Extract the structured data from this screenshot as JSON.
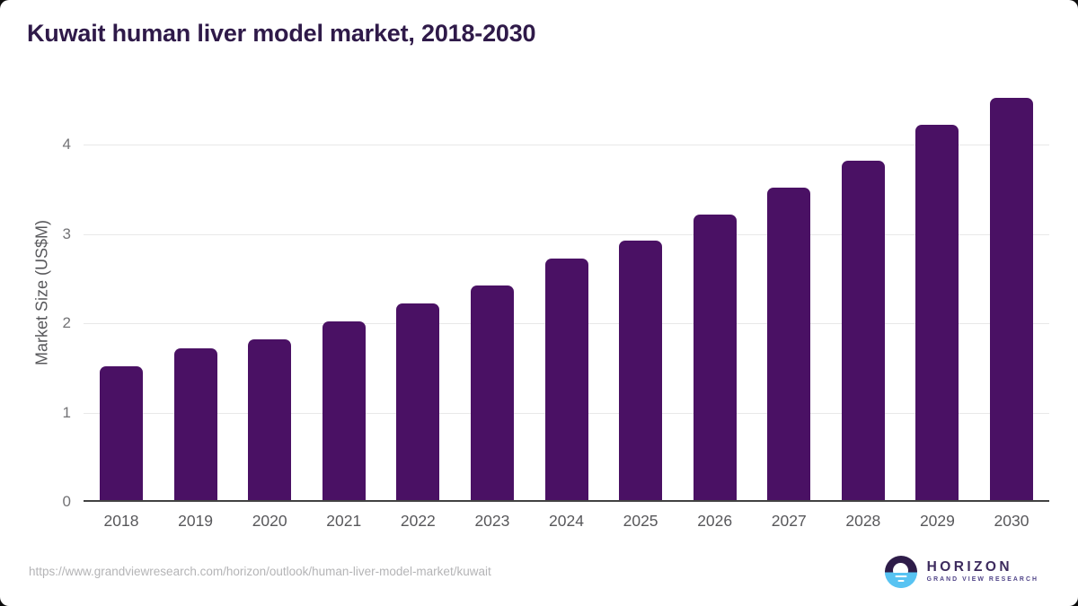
{
  "title": "Kuwait human liver model market, 2018-2030",
  "chart_data": {
    "type": "bar",
    "categories": [
      "2018",
      "2019",
      "2020",
      "2021",
      "2022",
      "2023",
      "2024",
      "2025",
      "2026",
      "2027",
      "2028",
      "2029",
      "2030"
    ],
    "values": [
      1.5,
      1.7,
      1.8,
      2.0,
      2.2,
      2.4,
      2.7,
      2.9,
      3.2,
      3.5,
      3.8,
      4.2,
      4.5
    ],
    "title": "Kuwait human liver model market, 2018-2030",
    "xlabel": "",
    "ylabel": "Market Size (US$M)",
    "yticks": [
      0,
      1,
      2,
      3,
      4
    ],
    "ylim": [
      0,
      4.62
    ],
    "grid": "horizontal gridlines at integer ticks",
    "legend": "none"
  },
  "footer": {
    "source_url": "https://www.grandviewresearch.com/horizon/outlook/human-liver-model-market/kuwait"
  },
  "logo": {
    "name": "HORIZON",
    "subtitle": "GRAND VIEW RESEARCH"
  },
  "colors": {
    "bar": "#4a1164",
    "title_text": "#2f1a49",
    "axis_text": "#58585b",
    "ytick_text": "#737376",
    "gridline": "#e8e8e8",
    "axis_line": "#424242",
    "url_text": "#b4b4b6",
    "logo_purple": "#2e1c49",
    "logo_blue": "#58c3f2",
    "background": "#ffffff"
  }
}
